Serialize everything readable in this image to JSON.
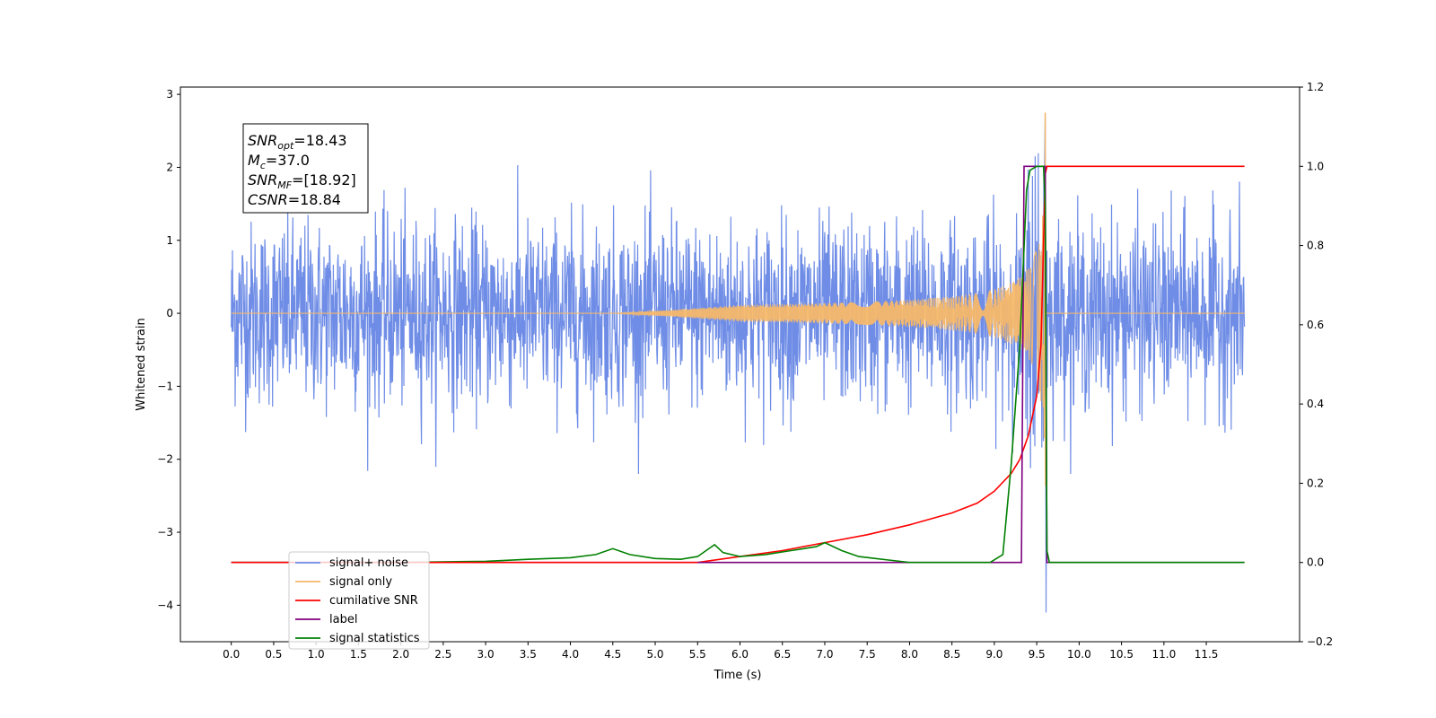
{
  "chart_data": {
    "type": "line",
    "xlabel": "Time (s)",
    "ylabel": "Whitened strain",
    "xlim": [
      -0.6,
      12.6
    ],
    "ylim": [
      -4.5,
      3.1
    ],
    "y2lim": [
      -0.2,
      1.2
    ],
    "x_ticks": [
      "0.0",
      "0.5",
      "1.0",
      "1.5",
      "2.0",
      "2.5",
      "3.0",
      "3.5",
      "4.0",
      "4.5",
      "5.0",
      "5.5",
      "6.0",
      "6.5",
      "7.0",
      "7.5",
      "8.0",
      "8.5",
      "9.0",
      "9.5",
      "10.0",
      "10.5",
      "11.0",
      "11.5"
    ],
    "y_ticks": [
      "3",
      "2",
      "1",
      "0",
      "−1",
      "−2",
      "−3",
      "−4"
    ],
    "y2_ticks": [
      "1.2",
      "1.0",
      "0.8",
      "0.6",
      "0.4",
      "0.2",
      "0.0",
      "−0.2"
    ],
    "legend_position": "lower-left",
    "series": [
      {
        "name": "signal+ noise",
        "axis": "left",
        "color": "#6f8de6",
        "kind": "noisy strain, amplitude ~1 around 0, spikes to 2.7 and -4.1 near t=9.6"
      },
      {
        "name": "signal only",
        "axis": "left",
        "color": "#f5b86a",
        "kind": "chirp growing from 0 amplitude to peak 2.75 at t=9.6"
      },
      {
        "name": "cumilative SNR",
        "axis": "right",
        "color": "#ff0000",
        "x": [
          5.5,
          6.0,
          6.5,
          7.0,
          7.5,
          8.0,
          8.5,
          8.8,
          9.0,
          9.2,
          9.3,
          9.4,
          9.5,
          9.55,
          9.6,
          9.62,
          11.95
        ],
        "y": [
          0.0,
          0.015,
          0.03,
          0.05,
          0.07,
          0.095,
          0.125,
          0.15,
          0.18,
          0.225,
          0.26,
          0.32,
          0.42,
          0.55,
          0.98,
          1.0,
          1.0
        ]
      },
      {
        "name": "label",
        "axis": "right",
        "color": "#800080",
        "x": [
          0.0,
          9.32,
          9.35,
          9.6,
          9.62,
          9.65,
          11.95
        ],
        "y": [
          0.0,
          0.0,
          1.0,
          1.0,
          0.0,
          0.0,
          0.0
        ]
      },
      {
        "name": "signal statistics",
        "axis": "right",
        "color": "#008000",
        "x": [
          0.0,
          2.0,
          3.0,
          3.5,
          4.0,
          4.3,
          4.5,
          4.7,
          5.0,
          5.3,
          5.5,
          5.6,
          5.7,
          5.8,
          6.0,
          6.3,
          6.6,
          6.9,
          7.0,
          7.2,
          7.4,
          7.6,
          7.8,
          8.0,
          8.5,
          8.95,
          9.1,
          9.2,
          9.3,
          9.38,
          9.42,
          9.5,
          9.55,
          9.58,
          9.6,
          9.62,
          9.65,
          11.95
        ],
        "y": [
          0.0,
          0.0,
          0.003,
          0.008,
          0.012,
          0.02,
          0.035,
          0.02,
          0.01,
          0.008,
          0.015,
          0.03,
          0.045,
          0.025,
          0.015,
          0.02,
          0.03,
          0.04,
          0.05,
          0.03,
          0.015,
          0.01,
          0.005,
          0.0,
          0.0,
          0.0,
          0.02,
          0.25,
          0.55,
          0.94,
          0.99,
          1.0,
          1.0,
          1.0,
          0.9,
          0.03,
          0.0,
          0.0
        ]
      }
    ],
    "annotation": [
      {
        "var": "SNR",
        "sub": "opt",
        "value": "=18.43"
      },
      {
        "var": "M",
        "sub": "c",
        "value": "=37.0"
      },
      {
        "var": "SNR",
        "sub": "MF",
        "value": "=[18.92]"
      },
      {
        "var": "CSNR",
        "sub": "",
        "value": "=18.84"
      }
    ],
    "legend": [
      {
        "label": "signal+ noise",
        "color": "#6f8de6"
      },
      {
        "label": "signal only",
        "color": "#f5b86a"
      },
      {
        "label": "cumilative SNR",
        "color": "#ff0000"
      },
      {
        "label": "label",
        "color": "#800080"
      },
      {
        "label": "signal statistics",
        "color": "#008000"
      }
    ]
  }
}
